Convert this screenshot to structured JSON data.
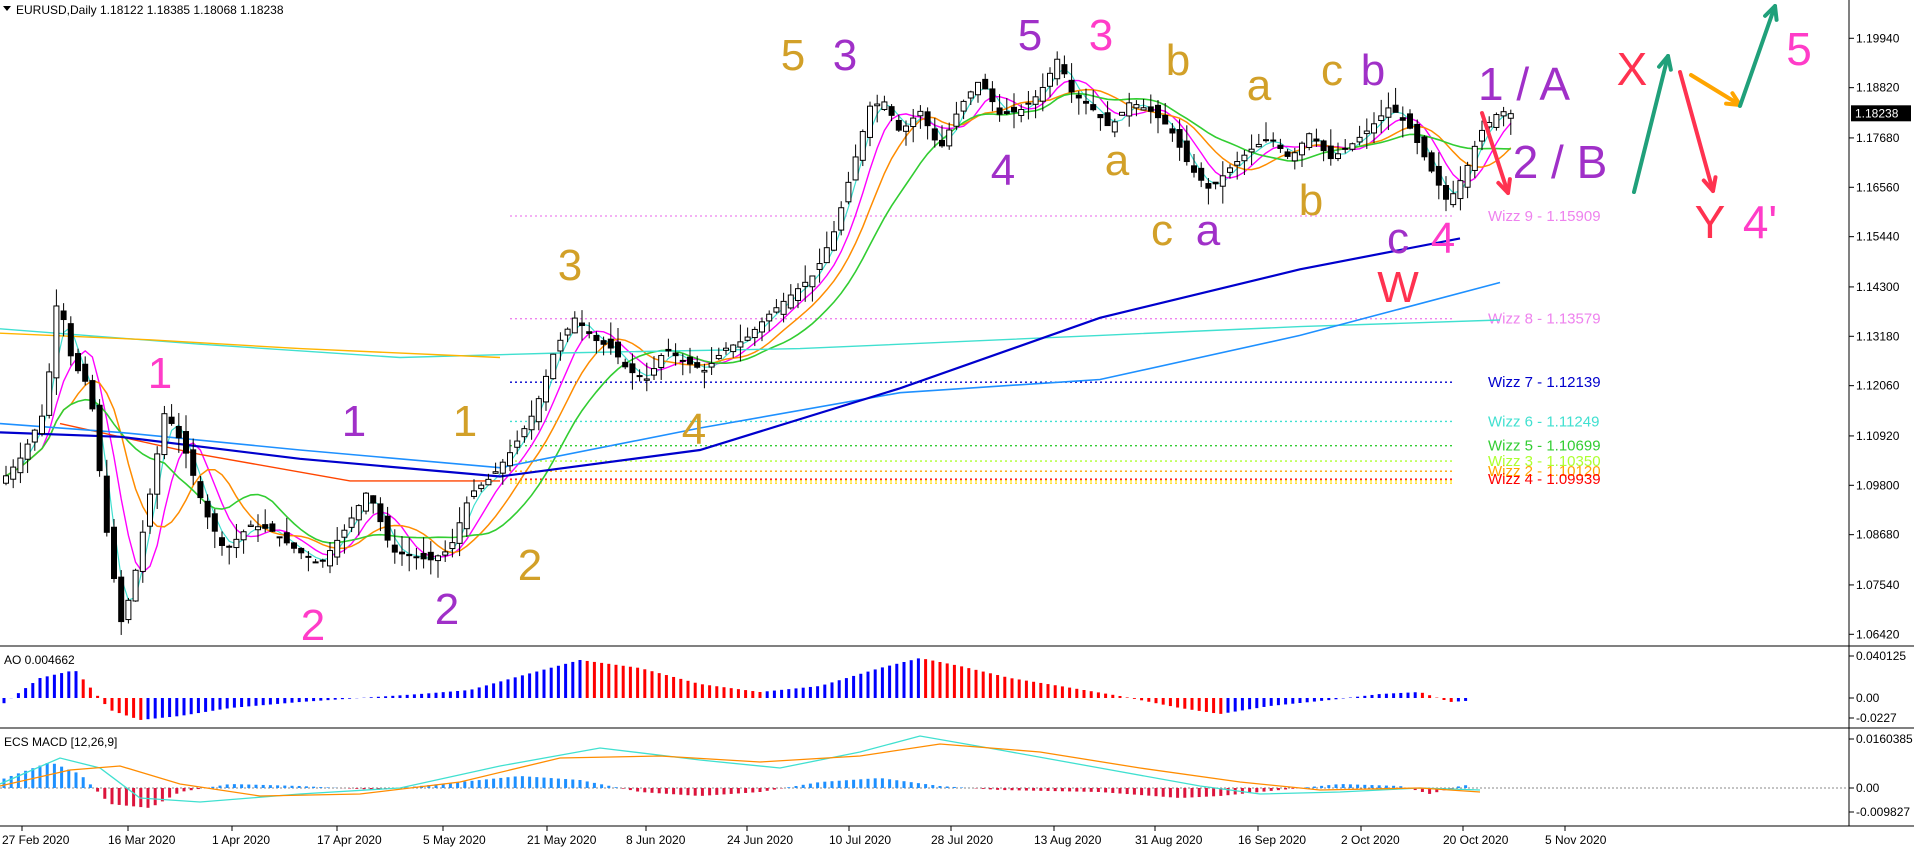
{
  "header": {
    "symbol_line": "EURUSD,Daily  1.18122 1.18385 1.18068 1.18238",
    "ao_label": "AO 0.004662",
    "macd_label": "ECS MACD [12,26,9]"
  },
  "price_axis": {
    "ticks": [
      "1.19940",
      "1.18820",
      "1.17680",
      "1.16560",
      "1.15440",
      "1.14300",
      "1.13180",
      "1.12060",
      "1.10920",
      "1.09800",
      "1.08680",
      "1.07540",
      "1.06420"
    ],
    "tick_values": [
      1.1994,
      1.1882,
      1.1768,
      1.1656,
      1.1544,
      1.143,
      1.1318,
      1.1206,
      1.1092,
      1.098,
      1.0868,
      1.0754,
      1.0642
    ],
    "current_price": "1.18238",
    "current_value": 1.18238
  },
  "ao_axis": {
    "ticks": [
      "0.040125",
      "0.00",
      "-0.0227"
    ]
  },
  "macd_axis": {
    "ticks": [
      "0.0160385",
      "0.00",
      "-0.009827"
    ]
  },
  "date_axis": {
    "labels": [
      "27 Feb 2020",
      "16 Mar 2020",
      "1 Apr 2020",
      "17 Apr 2020",
      "5 May 2020",
      "21 May 2020",
      "8 Jun 2020",
      "24 Jun 2020",
      "10 Jul 2020",
      "28 Jul 2020",
      "13 Aug 2020",
      "31 Aug 2020",
      "16 Sep 2020",
      "2 Oct 2020",
      "20 Oct 2020",
      "5 Nov 2020"
    ]
  },
  "chart_data": {
    "type": "line",
    "title": "EURUSD,Daily",
    "x": [
      "27 Feb 2020",
      "16 Mar 2020",
      "1 Apr 2020",
      "17 Apr 2020",
      "5 May 2020",
      "21 May 2020",
      "8 Jun 2020",
      "24 Jun 2020",
      "10 Jul 2020",
      "28 Jul 2020",
      "13 Aug 2020",
      "31 Aug 2020",
      "16 Sep 2020",
      "2 Oct 2020",
      "20 Oct 2020",
      "5 Nov 2020"
    ],
    "series": [
      {
        "values": [
          1.0985,
          1.065,
          1.0955,
          1.081,
          1.079,
          1.0925,
          1.134,
          1.123,
          1.142,
          1.18,
          1.186,
          1.195,
          1.172,
          1.176,
          1.184,
          1.1823
        ]
      }
    ],
    "ylim": [
      1.062,
      1.204
    ],
    "wizz_levels": [
      {
        "label": "Wizz 9 - 1.15909",
        "value": 1.15909,
        "color": "#ee82ee"
      },
      {
        "label": "Wizz 8 - 1.13579",
        "value": 1.13579,
        "color": "#ee82ee"
      },
      {
        "label": "Wizz 7 - 1.12139",
        "value": 1.12139,
        "color": "#0000cd"
      },
      {
        "label": "Wizz 6 - 1.11249",
        "value": 1.11249,
        "color": "#40e0d0"
      },
      {
        "label": "Wizz 5 - 1.10699",
        "value": 1.10699,
        "color": "#32cd32"
      },
      {
        "label": "Wizz 3 - 1.10350",
        "value": 1.1035,
        "color": "#adff2f"
      },
      {
        "label": "Wizz 2 - 1.10120",
        "value": 1.1012,
        "color": "#ffa500"
      },
      {
        "label": "Wizz 4 - 1.09939",
        "value": 1.09939,
        "color": "#ff0000"
      }
    ],
    "wave_labels": [
      {
        "text": "1",
        "color": "#ff3cc8",
        "x": "1 Apr 2020",
        "y": 1.1234
      },
      {
        "text": "2",
        "color": "#ff3cc8",
        "x": "17 Apr 2020",
        "y": 1.065
      },
      {
        "text": "1",
        "color": "#a030c8",
        "x": "5 May 2020",
        "y": 1.103
      },
      {
        "text": "2",
        "color": "#a030c8",
        "x": "5 May 2020",
        "y": 1.068
      },
      {
        "text": "1",
        "color": "#d2a028",
        "x": "21 May 2020",
        "y": 1.103
      },
      {
        "text": "2",
        "color": "#d2a028",
        "x": "21 May 2020",
        "y": 1.08
      },
      {
        "text": "3",
        "color": "#d2a028",
        "x": "8 Jun 2020",
        "y": 1.143
      },
      {
        "text": "4",
        "color": "#d2a028",
        "x": "24 Jun 2020",
        "y": 1.11
      },
      {
        "text": "5",
        "color": "#d2a028",
        "x": "10 Jul 2020",
        "y": 1.199
      },
      {
        "text": "3",
        "color": "#a030c8",
        "x": "28 Jul 2020",
        "y": 1.199
      },
      {
        "text": "4",
        "color": "#a030c8",
        "x": "13 Aug 2020",
        "y": 1.171
      },
      {
        "text": "5",
        "color": "#a030c8",
        "x": "13 Aug 2020",
        "y": 1.2
      },
      {
        "text": "3",
        "color": "#ff3cc8",
        "x": "31 Aug 2020",
        "y": 1.2
      },
      {
        "text": "a",
        "color": "#d2a028",
        "x": "31 Aug 2020",
        "y": 1.172
      },
      {
        "text": "b",
        "color": "#d2a028",
        "x": "16 Sep 2020",
        "y": 1.194
      },
      {
        "text": "c",
        "color": "#d2a028",
        "x": "16 Sep 2020",
        "y": 1.156
      },
      {
        "text": "a",
        "color": "#a030c8",
        "x": "16 Sep 2020",
        "y": 1.156
      },
      {
        "text": "a",
        "color": "#d2a028",
        "x": "2 Oct 2020",
        "y": 1.188
      },
      {
        "text": "b",
        "color": "#d2a028",
        "x": "2 Oct 2020",
        "y": 1.161
      },
      {
        "text": "c",
        "color": "#d2a028",
        "x": "20 Oct 2020",
        "y": 1.192
      },
      {
        "text": "b",
        "color": "#a030c8",
        "x": "20 Oct 2020",
        "y": 1.192
      },
      {
        "text": "c",
        "color": "#a030c8",
        "x": "5 Nov 2020",
        "y": 1.154
      },
      {
        "text": "4",
        "color": "#ff3cc8",
        "x": "5 Nov 2020",
        "y": 1.154
      },
      {
        "text": "W",
        "color": "#ff3250",
        "x": "5 Nov 2020",
        "y": 1.14
      }
    ],
    "projection_labels": [
      {
        "text": "1 / A",
        "color": "#a030c8"
      },
      {
        "text": "2 / B",
        "color": "#a030c8"
      },
      {
        "text": "X",
        "color": "#ff3250"
      },
      {
        "text": "Y",
        "color": "#ff3250"
      },
      {
        "text": "4'",
        "color": "#ff3cc8"
      },
      {
        "text": "5",
        "color": "#ff3cc8"
      }
    ],
    "colors": {
      "bull_ao": "#0000ff",
      "bear_ao": "#ff0000",
      "sma_long": "#0000cd",
      "sma_mid": "#1e90ff",
      "sma_slow": "#40e0d0",
      "ema_green": "#32cd32",
      "ema_orange": "#ff8c00",
      "ema_magenta": "#ff00ff",
      "ema_cyan": "#40e0d0",
      "macd_line": "#40e0d0",
      "signal_line": "#ff8c00",
      "hist_pos": "#1e90ff",
      "hist_neg": "#dc143c"
    }
  }
}
